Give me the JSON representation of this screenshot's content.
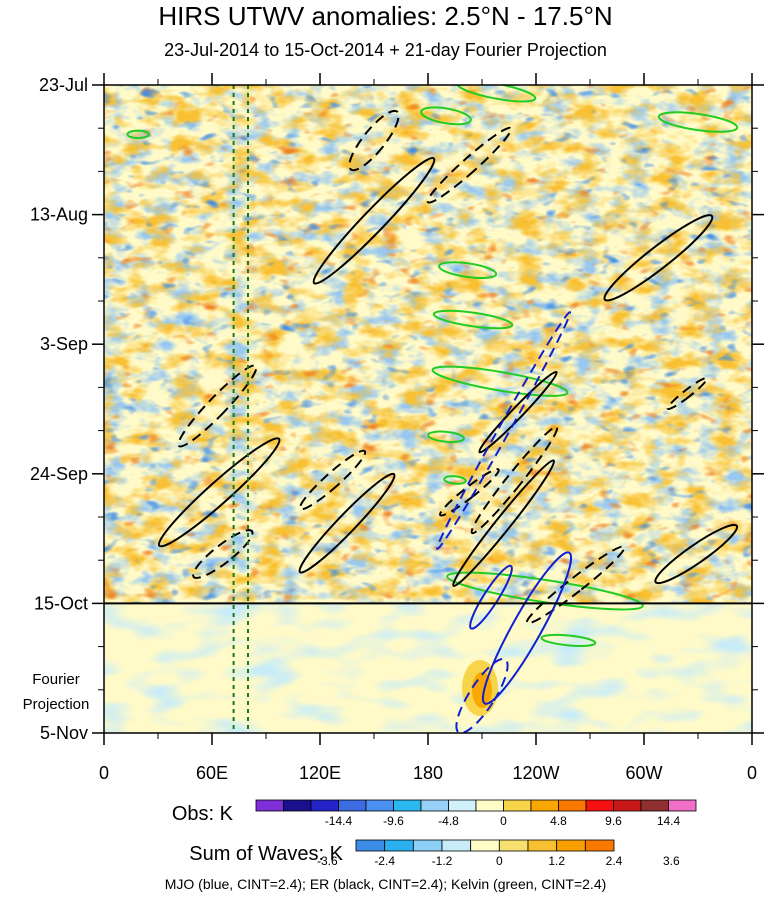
{
  "chart_data": {
    "type": "heatmap",
    "title": "HIRS UTWV anomalies: 2.5°N - 17.5°N",
    "subtitle": "23-Jul-2014 to 15-Oct-2014 + 21-day Fourier Projection",
    "xlabel": "",
    "ylabel": "",
    "x_ticks": [
      "0",
      "60E",
      "120E",
      "180",
      "120W",
      "60W",
      "0"
    ],
    "x_tick_lon": [
      0,
      60,
      120,
      180,
      240,
      300,
      360
    ],
    "y_ticks": [
      "23-Jul",
      "13-Aug",
      "3-Sep",
      "24-Sep",
      "15-Oct",
      "5-Nov"
    ],
    "y_tick_day": [
      0,
      21,
      42,
      63,
      84,
      105
    ],
    "xlim": [
      0,
      360
    ],
    "ylim_days": [
      0,
      105
    ],
    "obs_end_day": 84,
    "projection_label_1": "Fourier",
    "projection_label_2": "Projection",
    "vertical_lines_lon": [
      72,
      80
    ],
    "colorbar_obs": {
      "label": "Obs: K",
      "colors": [
        "#7f2fd8",
        "#1a0f8c",
        "#2424c8",
        "#3d6ce0",
        "#4a90f0",
        "#2ab8f0",
        "#98d0f8",
        "#d0f0fa",
        "#fffcc8",
        "#f8d44a",
        "#f8a800",
        "#f87800",
        "#f81010",
        "#c81818",
        "#903030",
        "#f070c8"
      ],
      "tick_labels": [
        "-14.4",
        "-9.6",
        "-4.8",
        "0",
        "4.8",
        "9.6",
        "14.4"
      ]
    },
    "colorbar_waves": {
      "label": "Sum of Waves: K",
      "colors": [
        "#3d8ce8",
        "#2ab0f0",
        "#8ccff7",
        "#c8ecf8",
        "#fffcc8",
        "#f8e070",
        "#f8c030",
        "#f8a000",
        "#f87800"
      ],
      "tick_labels": [
        "-3.6",
        "-2.4",
        "-1.2",
        "0",
        "1.2",
        "2.4",
        "3.6"
      ]
    },
    "footer": "MJO (blue, CINT=2.4); ER (black, CINT=2.4); Kelvin (green, CINT=2.4)",
    "legend_colors": {
      "mjo": "#1020d0",
      "er": "#000000",
      "kelvin": "#22cc22"
    },
    "er_contours": [
      {
        "lon": 150,
        "day": 9,
        "rlon": 6,
        "rday": 6,
        "tilt": 0.5,
        "neg": true
      },
      {
        "lon": 150,
        "day": 22,
        "rlon": 6,
        "rday": 14,
        "tilt": 0.6,
        "neg": false
      },
      {
        "lon": 203,
        "day": 13,
        "rlon": 4,
        "rday": 9,
        "tilt": 0.7,
        "neg": true
      },
      {
        "lon": 308,
        "day": 28,
        "rlon": 6,
        "rday": 11,
        "tilt": 0.8,
        "neg": false
      },
      {
        "lon": 63,
        "day": 52,
        "rlon": 5,
        "rday": 9,
        "tilt": 0.6,
        "neg": true
      },
      {
        "lon": 64,
        "day": 66,
        "rlon": 6,
        "rday": 13,
        "tilt": 0.7,
        "neg": false
      },
      {
        "lon": 66,
        "day": 76,
        "rlon": 5,
        "rday": 6,
        "tilt": 0.8,
        "neg": true
      },
      {
        "lon": 127,
        "day": 64,
        "rlon": 4,
        "rday": 7,
        "tilt": 0.7,
        "neg": true
      },
      {
        "lon": 135,
        "day": 71,
        "rlon": 5,
        "rday": 11,
        "tilt": 0.6,
        "neg": false
      },
      {
        "lon": 203,
        "day": 66,
        "rlon": 3,
        "rday": 6,
        "tilt": 0.8,
        "neg": true
      },
      {
        "lon": 222,
        "day": 71,
        "rlon": 4,
        "rday": 13,
        "tilt": 0.5,
        "neg": false
      },
      {
        "lon": 230,
        "day": 53,
        "rlon": 3,
        "rday": 9,
        "tilt": 0.6,
        "neg": false
      },
      {
        "lon": 228,
        "day": 64,
        "rlon": 4,
        "rday": 11,
        "tilt": 0.5,
        "neg": true
      },
      {
        "lon": 262,
        "day": 81,
        "rlon": 4,
        "rday": 10,
        "tilt": 0.8,
        "neg": true
      },
      {
        "lon": 329,
        "day": 76,
        "rlon": 5,
        "rday": 8,
        "tilt": 0.9,
        "neg": false
      },
      {
        "lon": 324,
        "day": 50,
        "rlon": 2,
        "rday": 4,
        "tilt": 0.8,
        "neg": true
      }
    ],
    "mjo_contours": [
      {
        "lon": 222,
        "day": 56,
        "rlon": 3,
        "rday": 22,
        "tilt": 0.35,
        "neg": true
      },
      {
        "lon": 235,
        "day": 88,
        "rlon": 8,
        "rday": 14,
        "tilt": 0.35,
        "neg": false
      },
      {
        "lon": 215,
        "day": 83,
        "rlon": 4,
        "rday": 6,
        "tilt": 0.4,
        "neg": false
      },
      {
        "lon": 210,
        "day": 99,
        "rlon": 7,
        "rday": 7,
        "tilt": 0.4,
        "neg": true
      }
    ],
    "kelvin_contours": [
      {
        "lon": 218,
        "day": 1,
        "rlon": 22,
        "rday": 1.2,
        "tilt": 0.2,
        "neg": false
      },
      {
        "lon": 190,
        "day": 5,
        "rlon": 14,
        "rday": 1.2,
        "tilt": 0.18,
        "neg": false
      },
      {
        "lon": 330,
        "day": 6,
        "rlon": 22,
        "rday": 1.3,
        "tilt": 0.15,
        "neg": false
      },
      {
        "lon": 19,
        "day": 8,
        "rlon": 6,
        "rday": 0.6,
        "tilt": 0,
        "neg": false
      },
      {
        "lon": 202,
        "day": 30,
        "rlon": 16,
        "rday": 1.1,
        "tilt": 0.15,
        "neg": false
      },
      {
        "lon": 205,
        "day": 38,
        "rlon": 22,
        "rday": 1.1,
        "tilt": 0.15,
        "neg": false
      },
      {
        "lon": 220,
        "day": 48,
        "rlon": 38,
        "rday": 1.5,
        "tilt": 0.18,
        "neg": false
      },
      {
        "lon": 190,
        "day": 57,
        "rlon": 10,
        "rday": 0.8,
        "tilt": 0.1,
        "neg": false
      },
      {
        "lon": 195,
        "day": 64,
        "rlon": 6,
        "rday": 0.6,
        "tilt": 0.1,
        "neg": false
      },
      {
        "lon": 245,
        "day": 82,
        "rlon": 55,
        "rday": 1.8,
        "tilt": 0.16,
        "neg": false
      },
      {
        "lon": 258,
        "day": 90,
        "rlon": 15,
        "rday": 0.8,
        "tilt": 0.1,
        "neg": false
      }
    ]
  }
}
